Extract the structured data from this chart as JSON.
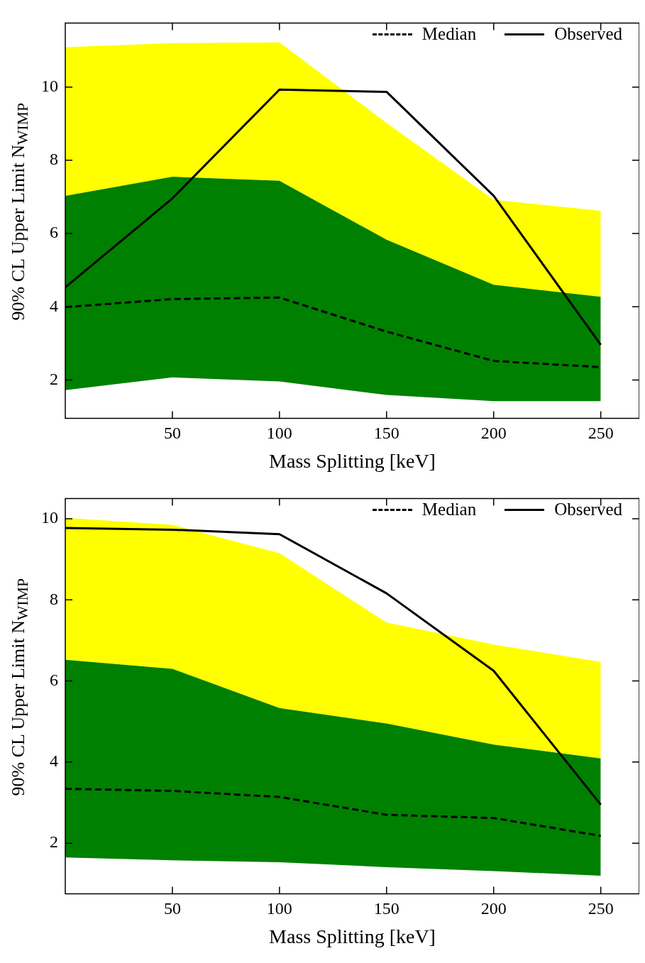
{
  "chart_data": [
    {
      "type": "line",
      "xlabel": "Mass Splitting [keV]",
      "ylabel": "90% CL Upper Limit N$_{WIMP}$",
      "x": [
        0,
        50,
        100,
        150,
        200,
        250
      ],
      "xlim": [
        0,
        268
      ],
      "xticks": [
        50,
        100,
        150,
        200,
        250
      ],
      "ylim": [
        0.95,
        11.75
      ],
      "yticks": [
        2,
        4,
        6,
        8,
        10
      ],
      "legend": "top right",
      "series": [
        {
          "color": "#ffff00",
          "values": [
            null,
            null,
            null,
            null,
            null,
            null
          ],
          "lower": [
            7.03,
            7.55,
            7.44,
            5.83,
            4.6,
            4.27
          ],
          "upper": [
            11.09,
            11.2,
            11.22,
            9.02,
            6.92,
            6.62
          ]
        },
        {
          "color": "#008000",
          "values": [
            null,
            null,
            null,
            null,
            null,
            null
          ],
          "lower": [
            1.72,
            2.07,
            1.96,
            1.59,
            1.42,
            1.42
          ],
          "upper": [
            7.03,
            7.55,
            7.44,
            5.83,
            4.6,
            4.27
          ]
        },
        {
          "name": "Median",
          "color": "#000000",
          "line_style": "dashed",
          "values": [
            3.99,
            4.21,
            4.25,
            3.32,
            2.52,
            2.35
          ]
        },
        {
          "name": "Observed",
          "color": "#000000",
          "line_style": "solid",
          "values": [
            4.53,
            6.96,
            9.93,
            9.87,
            7.03,
            2.96
          ]
        }
      ]
    },
    {
      "type": "line",
      "xlabel": "Mass Splitting [keV]",
      "ylabel": "90% CL Upper Limit N$_{WIMP}$",
      "x": [
        0,
        50,
        100,
        150,
        200,
        250
      ],
      "xlim": [
        0,
        268
      ],
      "xticks": [
        50,
        100,
        150,
        200,
        250
      ],
      "ylim": [
        0.75,
        10.5
      ],
      "yticks": [
        2,
        4,
        6,
        8,
        10
      ],
      "legend": "top right",
      "series": [
        {
          "color": "#ffff00",
          "values": [
            null,
            null,
            null,
            null,
            null,
            null
          ],
          "lower": [
            6.52,
            6.3,
            5.33,
            4.95,
            4.43,
            4.09
          ],
          "upper": [
            10.02,
            9.85,
            9.15,
            7.44,
            6.9,
            6.47
          ]
        },
        {
          "color": "#008000",
          "values": [
            null,
            null,
            null,
            null,
            null,
            null
          ],
          "lower": [
            1.65,
            1.58,
            1.53,
            1.41,
            1.31,
            1.2
          ],
          "upper": [
            6.52,
            6.3,
            5.33,
            4.95,
            4.43,
            4.09
          ]
        },
        {
          "name": "Median",
          "color": "#000000",
          "line_style": "dashed",
          "values": [
            3.34,
            3.29,
            3.14,
            2.7,
            2.62,
            2.18
          ]
        },
        {
          "name": "Observed",
          "color": "#000000",
          "line_style": "solid",
          "values": [
            9.77,
            9.73,
            9.62,
            8.16,
            6.25,
            2.95
          ]
        }
      ]
    }
  ]
}
